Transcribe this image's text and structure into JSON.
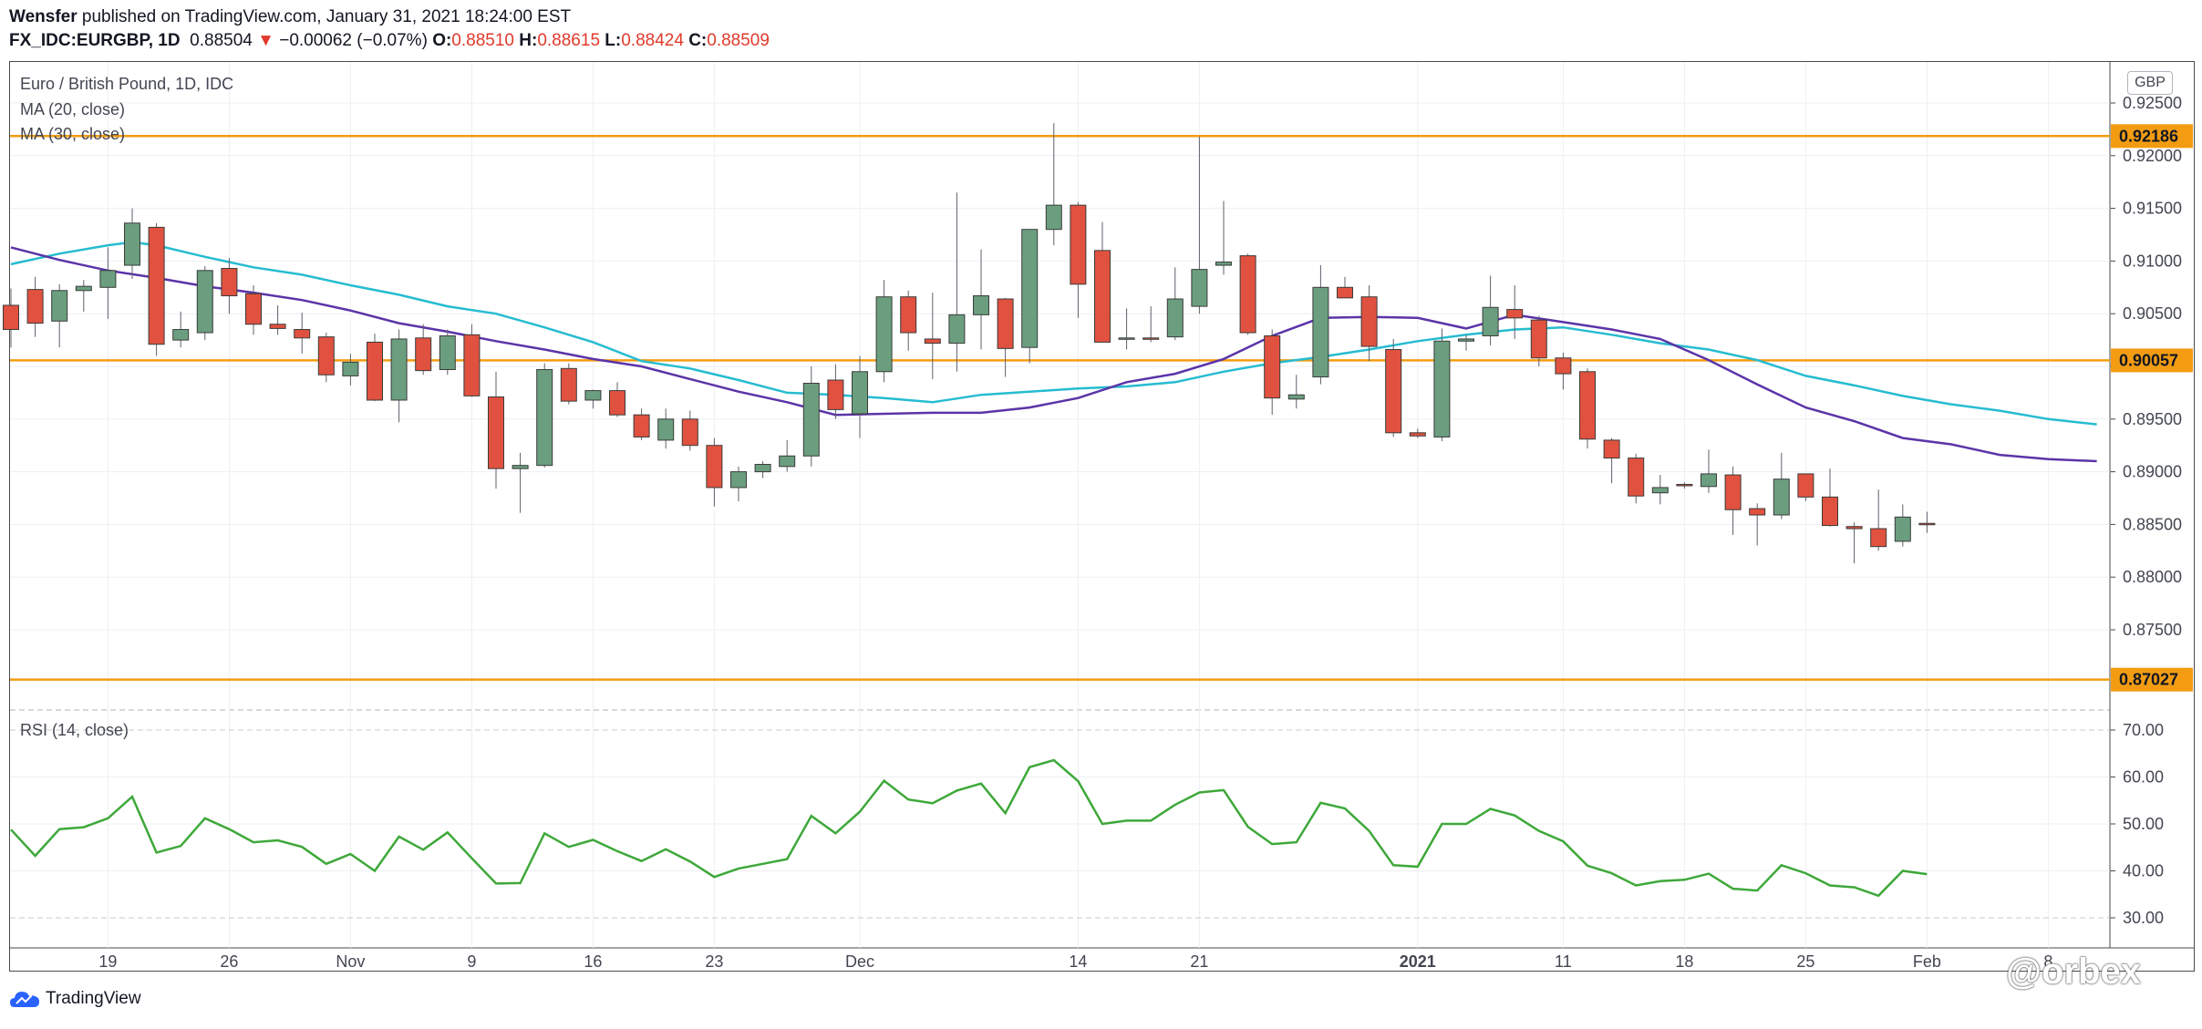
{
  "header": {
    "author": "Wensfer",
    "published": "published on TradingView.com, January 31, 2021 18:24:00 EST",
    "symbol": "FX_IDC:EURGBP, 1D",
    "last": "0.88504",
    "change": "−0.00062 (−0.07%)",
    "o_label": "O:",
    "o_val": "0.88510",
    "h_label": "H:",
    "h_val": "0.88615",
    "l_label": "L:",
    "l_val": "0.88424",
    "c_label": "C:",
    "c_val": "0.88509"
  },
  "legend": {
    "main": "Euro / British Pound, 1D, IDC",
    "ma20": "MA (20, close)",
    "ma30": "MA (30, close)",
    "rsi": "RSI (14, close)"
  },
  "currency": "GBP",
  "footer": {
    "logo_text": "TradingView",
    "watermark": "@orbex"
  },
  "colors": {
    "up": "#6a9e7f",
    "down": "#e0523f",
    "ma20": "#5b34a8",
    "ma30": "#26bcd0",
    "level": "#f39c12",
    "rsi": "#3ea83a"
  },
  "chart_data": {
    "type": "candlestick",
    "price_axis": {
      "ticks": [
        "0.92500",
        "0.92000",
        "0.91500",
        "0.91000",
        "0.90500",
        "0.90000",
        "0.89500",
        "0.89000",
        "0.88500",
        "0.88000",
        "0.87500"
      ],
      "range": [
        0.869,
        0.9265
      ]
    },
    "rsi_axis": {
      "ticks": [
        "70.00",
        "60.00",
        "50.00",
        "40.00",
        "30.00"
      ],
      "range": [
        26,
        75
      ]
    },
    "time_labels": [
      {
        "label": "19",
        "i": 4
      },
      {
        "label": "26",
        "i": 9
      },
      {
        "label": "Nov",
        "i": 14
      },
      {
        "label": "9",
        "i": 19
      },
      {
        "label": "16",
        "i": 24
      },
      {
        "label": "23",
        "i": 29
      },
      {
        "label": "Dec",
        "i": 35
      },
      {
        "label": "14",
        "i": 44
      },
      {
        "label": "21",
        "i": 49
      },
      {
        "label": "2021",
        "i": 58
      },
      {
        "label": "11",
        "i": 64
      },
      {
        "label": "18",
        "i": 69
      },
      {
        "label": "25",
        "i": 74
      },
      {
        "label": "Feb",
        "i": 79
      },
      {
        "label": "8",
        "i": 84
      }
    ],
    "levels": [
      {
        "price": 0.92186,
        "label": "0.92186"
      },
      {
        "price": 0.90057,
        "label": "0.90057"
      },
      {
        "price": 0.87027,
        "label": "0.87027"
      }
    ],
    "candles": [
      [
        0.9058,
        0.9074,
        0.9018,
        0.9035
      ],
      [
        0.9073,
        0.9085,
        0.9028,
        0.9041
      ],
      [
        0.9043,
        0.9078,
        0.9018,
        0.9072
      ],
      [
        0.9072,
        0.9082,
        0.9052,
        0.9076
      ],
      [
        0.9075,
        0.9113,
        0.9045,
        0.9091
      ],
      [
        0.9096,
        0.915,
        0.9083,
        0.9136
      ],
      [
        0.9132,
        0.9136,
        0.901,
        0.9021
      ],
      [
        0.9025,
        0.9052,
        0.9018,
        0.9035
      ],
      [
        0.9032,
        0.9095,
        0.9025,
        0.9091
      ],
      [
        0.9093,
        0.9103,
        0.905,
        0.9067
      ],
      [
        0.9069,
        0.9077,
        0.903,
        0.904
      ],
      [
        0.904,
        0.9058,
        0.903,
        0.9036
      ],
      [
        0.9035,
        0.9051,
        0.9012,
        0.9027
      ],
      [
        0.9028,
        0.9032,
        0.8985,
        0.8992
      ],
      [
        0.8991,
        0.9012,
        0.8982,
        0.9004
      ],
      [
        0.9023,
        0.9031,
        0.8967,
        0.8968
      ],
      [
        0.8968,
        0.9035,
        0.8947,
        0.9026
      ],
      [
        0.9027,
        0.904,
        0.8992,
        0.8996
      ],
      [
        0.8997,
        0.9035,
        0.8992,
        0.9029
      ],
      [
        0.903,
        0.904,
        0.8971,
        0.8972
      ],
      [
        0.8971,
        0.8995,
        0.8884,
        0.8903
      ],
      [
        0.8903,
        0.8918,
        0.8861,
        0.8906
      ],
      [
        0.8906,
        0.9003,
        0.8904,
        0.8997
      ],
      [
        0.8998,
        0.9003,
        0.8964,
        0.8967
      ],
      [
        0.8968,
        0.8978,
        0.896,
        0.8977
      ],
      [
        0.8977,
        0.8985,
        0.8952,
        0.8954
      ],
      [
        0.8954,
        0.896,
        0.893,
        0.8933
      ],
      [
        0.893,
        0.896,
        0.8922,
        0.895
      ],
      [
        0.895,
        0.8958,
        0.892,
        0.8925
      ],
      [
        0.8925,
        0.8932,
        0.8867,
        0.8885
      ],
      [
        0.8885,
        0.8905,
        0.8872,
        0.89
      ],
      [
        0.89,
        0.891,
        0.8894,
        0.8907
      ],
      [
        0.8905,
        0.893,
        0.89,
        0.8915
      ],
      [
        0.8915,
        0.9,
        0.8905,
        0.8984
      ],
      [
        0.8987,
        0.9002,
        0.895,
        0.8959
      ],
      [
        0.8955,
        0.901,
        0.8932,
        0.8995
      ],
      [
        0.8995,
        0.9082,
        0.8985,
        0.9066
      ],
      [
        0.9066,
        0.9072,
        0.9015,
        0.9032
      ],
      [
        0.9026,
        0.907,
        0.8988,
        0.9022
      ],
      [
        0.9022,
        0.9165,
        0.8995,
        0.9049
      ],
      [
        0.9049,
        0.9111,
        0.9016,
        0.9067
      ],
      [
        0.9064,
        0.9065,
        0.899,
        0.9017
      ],
      [
        0.9018,
        0.913,
        0.9003,
        0.913
      ],
      [
        0.913,
        0.9231,
        0.9115,
        0.9153
      ],
      [
        0.9153,
        0.9156,
        0.9046,
        0.9078
      ],
      [
        0.911,
        0.9137,
        0.9025,
        0.9023
      ],
      [
        0.9026,
        0.9055,
        0.9016,
        0.9027
      ],
      [
        0.9027,
        0.9057,
        0.9023,
        0.9026
      ],
      [
        0.9028,
        0.9094,
        0.9025,
        0.9064
      ],
      [
        0.9057,
        0.9218,
        0.905,
        0.9092
      ],
      [
        0.9096,
        0.9157,
        0.9087,
        0.9099
      ],
      [
        0.9105,
        0.9107,
        0.903,
        0.9032
      ],
      [
        0.9029,
        0.9035,
        0.8954,
        0.897
      ],
      [
        0.8969,
        0.8992,
        0.896,
        0.8973
      ],
      [
        0.899,
        0.9096,
        0.8983,
        0.9075
      ],
      [
        0.9075,
        0.9085,
        0.9065,
        0.9065
      ],
      [
        0.9066,
        0.9077,
        0.9005,
        0.9019
      ],
      [
        0.9016,
        0.9026,
        0.8933,
        0.8937
      ],
      [
        0.8937,
        0.8941,
        0.8932,
        0.8934
      ],
      [
        0.8933,
        0.9036,
        0.8929,
        0.9024
      ],
      [
        0.9024,
        0.903,
        0.9015,
        0.9026
      ],
      [
        0.9029,
        0.9086,
        0.902,
        0.9056
      ],
      [
        0.9054,
        0.9077,
        0.9026,
        0.9046
      ],
      [
        0.9044,
        0.9048,
        0.9,
        0.9008
      ],
      [
        0.9008,
        0.9013,
        0.8978,
        0.8993
      ],
      [
        0.8995,
        0.8998,
        0.8922,
        0.8931
      ],
      [
        0.893,
        0.8932,
        0.8889,
        0.8913
      ],
      [
        0.8913,
        0.8917,
        0.887,
        0.8877
      ],
      [
        0.888,
        0.8897,
        0.8869,
        0.8885
      ],
      [
        0.8888,
        0.889,
        0.8884,
        0.8887
      ],
      [
        0.8886,
        0.8921,
        0.888,
        0.8898
      ],
      [
        0.8897,
        0.8905,
        0.884,
        0.8864
      ],
      [
        0.8865,
        0.887,
        0.883,
        0.8859
      ],
      [
        0.8859,
        0.8918,
        0.8855,
        0.8893
      ],
      [
        0.8898,
        0.8898,
        0.8872,
        0.8876
      ],
      [
        0.8876,
        0.8903,
        0.8848,
        0.8849
      ],
      [
        0.8848,
        0.8852,
        0.8813,
        0.8846
      ],
      [
        0.8846,
        0.8883,
        0.8825,
        0.8829
      ],
      [
        0.8834,
        0.8869,
        0.8829,
        0.8857
      ],
      [
        0.8851,
        0.8862,
        0.8842,
        0.885
      ]
    ],
    "ma20": [
      [
        0,
        0.9113
      ],
      [
        2,
        0.9101
      ],
      [
        4,
        0.9091
      ],
      [
        6,
        0.9084
      ],
      [
        8,
        0.9076
      ],
      [
        10,
        0.907
      ],
      [
        12,
        0.9063
      ],
      [
        14,
        0.9053
      ],
      [
        16,
        0.9041
      ],
      [
        18,
        0.9033
      ],
      [
        20,
        0.9024
      ],
      [
        22,
        0.9016
      ],
      [
        24,
        0.9007
      ],
      [
        26,
        0.9
      ],
      [
        28,
        0.8988
      ],
      [
        30,
        0.8976
      ],
      [
        32,
        0.8966
      ],
      [
        34,
        0.8954
      ],
      [
        36,
        0.8955
      ],
      [
        38,
        0.8956
      ],
      [
        40,
        0.8956
      ],
      [
        42,
        0.8961
      ],
      [
        44,
        0.897
      ],
      [
        46,
        0.8985
      ],
      [
        48,
        0.8993
      ],
      [
        50,
        0.9007
      ],
      [
        52,
        0.9029
      ],
      [
        54,
        0.9046
      ],
      [
        56,
        0.9047
      ],
      [
        58,
        0.9046
      ],
      [
        60,
        0.9036
      ],
      [
        62,
        0.9049
      ],
      [
        64,
        0.9042
      ],
      [
        66,
        0.9035
      ],
      [
        68,
        0.9026
      ],
      [
        70,
        0.9006
      ],
      [
        72,
        0.8983
      ],
      [
        74,
        0.8961
      ],
      [
        76,
        0.8948
      ],
      [
        78,
        0.8932
      ],
      [
        80,
        0.8926
      ],
      [
        82,
        0.8916
      ],
      [
        84,
        0.8912
      ],
      [
        86,
        0.891
      ]
    ],
    "ma30": [
      [
        0,
        0.9097
      ],
      [
        2,
        0.9107
      ],
      [
        4,
        0.9115
      ],
      [
        5,
        0.9118
      ],
      [
        6,
        0.9115
      ],
      [
        8,
        0.9104
      ],
      [
        10,
        0.9094
      ],
      [
        12,
        0.9087
      ],
      [
        14,
        0.9077
      ],
      [
        16,
        0.9068
      ],
      [
        18,
        0.9057
      ],
      [
        20,
        0.905
      ],
      [
        22,
        0.9037
      ],
      [
        24,
        0.9023
      ],
      [
        26,
        0.9005
      ],
      [
        28,
        0.8998
      ],
      [
        30,
        0.8987
      ],
      [
        32,
        0.8975
      ],
      [
        34,
        0.8973
      ],
      [
        36,
        0.897
      ],
      [
        38,
        0.8966
      ],
      [
        40,
        0.8973
      ],
      [
        42,
        0.8976
      ],
      [
        44,
        0.8979
      ],
      [
        46,
        0.8981
      ],
      [
        48,
        0.8985
      ],
      [
        50,
        0.8995
      ],
      [
        52,
        0.9003
      ],
      [
        54,
        0.9009
      ],
      [
        56,
        0.9016
      ],
      [
        58,
        0.9024
      ],
      [
        60,
        0.903
      ],
      [
        62,
        0.9035
      ],
      [
        64,
        0.9037
      ],
      [
        66,
        0.903
      ],
      [
        68,
        0.9022
      ],
      [
        70,
        0.9016
      ],
      [
        72,
        0.9006
      ],
      [
        74,
        0.8991
      ],
      [
        76,
        0.8982
      ],
      [
        78,
        0.8972
      ],
      [
        80,
        0.8964
      ],
      [
        82,
        0.8958
      ],
      [
        84,
        0.895
      ],
      [
        86,
        0.8945
      ]
    ],
    "rsi": [
      48.8,
      43.2,
      48.9,
      49.3,
      51.2,
      55.8,
      43.9,
      45.3,
      51.2,
      48.9,
      46.1,
      46.5,
      45.1,
      41.5,
      43.6,
      40.0,
      47.3,
      44.5,
      48.2,
      42.7,
      37.3,
      37.4,
      48.0,
      45.1,
      46.6,
      44.2,
      42.1,
      44.6,
      42.0,
      38.7,
      40.5,
      41.5,
      42.5,
      51.7,
      48.0,
      52.6,
      59.2,
      55.2,
      54.4,
      57.1,
      58.6,
      52.3,
      62.1,
      63.6,
      59.1,
      50.0,
      50.7,
      50.7,
      54.1,
      56.7,
      57.2,
      49.4,
      45.7,
      46.1,
      54.5,
      53.3,
      48.5,
      41.2,
      40.9,
      50.0,
      50.0,
      53.2,
      51.8,
      48.5,
      46.3,
      41.1,
      39.5,
      36.9,
      37.8,
      38.1,
      39.4,
      36.2,
      35.8,
      41.2,
      39.5,
      36.9,
      36.5,
      34.7,
      40.0,
      39.3
    ]
  }
}
